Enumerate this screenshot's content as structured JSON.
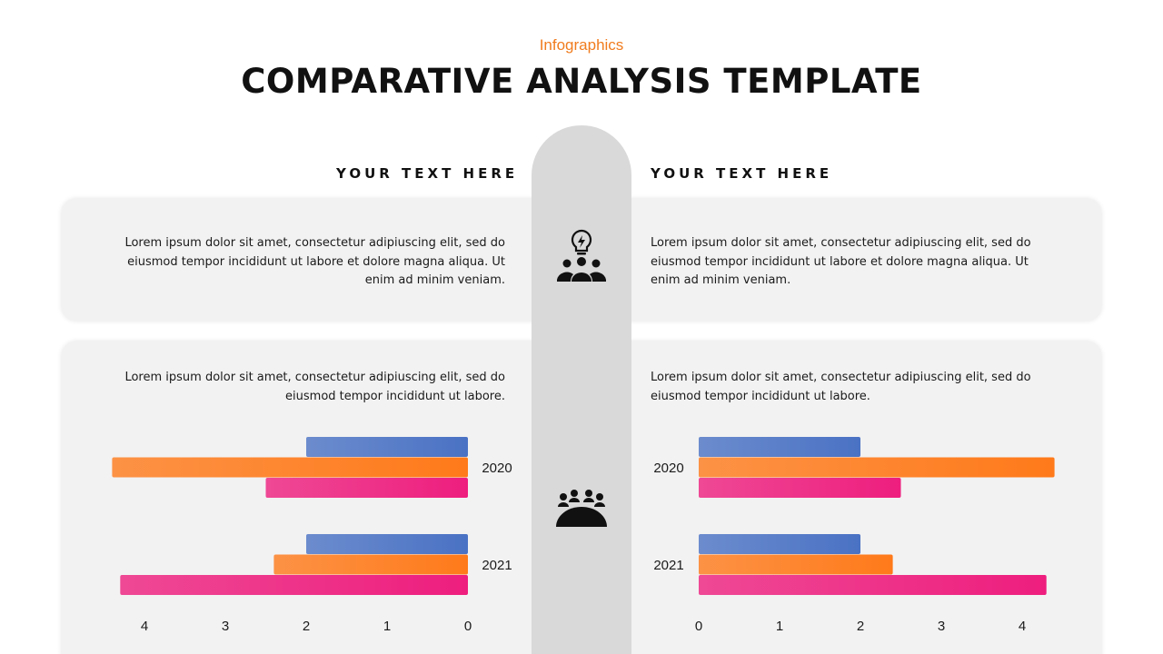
{
  "header": {
    "eyebrow": "Infographics",
    "title": "COMPARATIVE ANALYSIS TEMPLATE"
  },
  "left": {
    "heading": "YOUR TEXT HERE",
    "para1": "Lorem ipsum dolor sit amet, consectetur adipiuscing elit, sed do eiusmod tempor incididunt ut labore et dolore magna aliqua. Ut enim ad minim veniam.",
    "para2": "Lorem ipsum dolor sit amet, consectetur adipiuscing elit, sed do eiusmod tempor incididunt ut labore."
  },
  "right": {
    "heading": "YOUR TEXT HERE",
    "para1": "Lorem ipsum dolor sit amet, consectetur adipiuscing elit, sed do eiusmod tempor incididunt ut labore et dolore magna aliqua. Ut enim ad minim veniam.",
    "para2": "Lorem ipsum dolor sit amet, consectetur adipiuscing elit, sed do eiusmod tempor incididunt ut labore."
  },
  "icons": {
    "top": "lightbulb-team-icon",
    "bottom": "team-meeting-icon"
  },
  "colors": {
    "accent": "#f07c1e",
    "series_blue": "#4a72c4",
    "series_orange": "#ff7a1a",
    "series_pink": "#ee1e7e",
    "spine": "#d9d9d9",
    "panel": "#f2f2f2"
  },
  "chart_data": [
    {
      "type": "bar",
      "orientation": "horizontal",
      "direction": "right-to-left",
      "categories": [
        "2020",
        "2021"
      ],
      "series": [
        {
          "color": "#4a72c4",
          "values": [
            2.0,
            2.0
          ]
        },
        {
          "color": "#ff7a1a",
          "values": [
            4.4,
            2.4
          ]
        },
        {
          "color": "#ee1e7e",
          "values": [
            2.5,
            4.3
          ]
        }
      ],
      "xlim": [
        0,
        4
      ],
      "xticks": [
        4,
        3,
        2,
        1,
        0
      ],
      "grid": false,
      "legend": "none"
    },
    {
      "type": "bar",
      "orientation": "horizontal",
      "direction": "left-to-right",
      "categories": [
        "2020",
        "2021"
      ],
      "series": [
        {
          "color": "#4a72c4",
          "values": [
            2.0,
            2.0
          ]
        },
        {
          "color": "#ff7a1a",
          "values": [
            4.4,
            2.4
          ]
        },
        {
          "color": "#ee1e7e",
          "values": [
            2.5,
            4.3
          ]
        }
      ],
      "xlim": [
        0,
        4
      ],
      "xticks": [
        0,
        1,
        2,
        3,
        4
      ],
      "grid": false,
      "legend": "none"
    }
  ]
}
